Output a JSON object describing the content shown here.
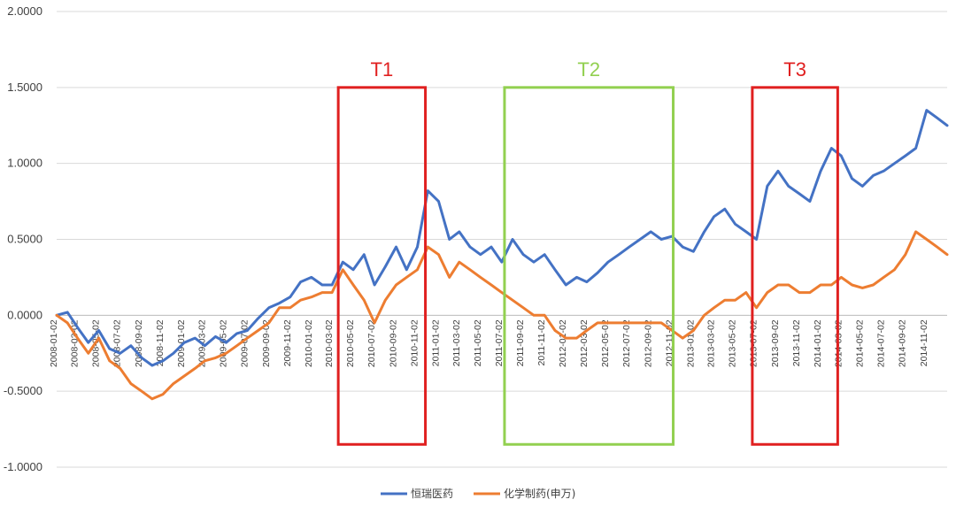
{
  "chart_data": {
    "type": "line",
    "title": "",
    "xlabel": "",
    "ylabel": "",
    "ylim": [
      -1.0,
      2.0
    ],
    "y_ticks": [
      "2.0000",
      "1.5000",
      "1.0000",
      "0.5000",
      "0.0000",
      "-0.5000",
      "-1.0000"
    ],
    "grid": true,
    "x_start": "2008-01-02",
    "x_end": "2014-12-31",
    "x_tick_labels": [
      "2008-01-02",
      "2008-03-02",
      "2008-05-02",
      "2008-07-02",
      "2008-09-02",
      "2008-11-02",
      "2009-01-02",
      "2009-03-02",
      "2009-05-02",
      "2009-07-02",
      "2009-09-02",
      "2009-11-02",
      "2010-01-02",
      "2010-03-02",
      "2010-05-02",
      "2010-07-02",
      "2010-09-02",
      "2010-11-02",
      "2011-01-02",
      "2011-03-02",
      "2011-05-02",
      "2011-07-02",
      "2011-09-02",
      "2011-11-02",
      "2012-01-02",
      "2012-03-02",
      "2012-05-02",
      "2012-07-02",
      "2012-09-02",
      "2012-11-02",
      "2013-01-02",
      "2013-03-02",
      "2013-05-02",
      "2013-07-02",
      "2013-09-02",
      "2013-11-02",
      "2014-01-02",
      "2014-03-02",
      "2014-05-02",
      "2014-07-02",
      "2014-09-02",
      "2014-11-02"
    ],
    "series": [
      {
        "name": "恒瑞医药",
        "color": "#4472C4",
        "x": [
          "2008-01-02",
          "2008-02-02",
          "2008-03-02",
          "2008-04-02",
          "2008-05-02",
          "2008-06-02",
          "2008-07-02",
          "2008-08-02",
          "2008-09-02",
          "2008-10-02",
          "2008-11-02",
          "2008-12-02",
          "2009-01-02",
          "2009-02-02",
          "2009-03-02",
          "2009-04-02",
          "2009-05-02",
          "2009-06-02",
          "2009-07-02",
          "2009-08-02",
          "2009-09-02",
          "2009-10-02",
          "2009-11-02",
          "2009-12-02",
          "2010-01-02",
          "2010-02-02",
          "2010-03-02",
          "2010-04-02",
          "2010-05-02",
          "2010-06-02",
          "2010-07-02",
          "2010-08-02",
          "2010-09-02",
          "2010-10-02",
          "2010-11-02",
          "2010-12-02",
          "2011-01-02",
          "2011-02-02",
          "2011-03-02",
          "2011-04-02",
          "2011-05-02",
          "2011-06-02",
          "2011-07-02",
          "2011-08-02",
          "2011-09-02",
          "2011-10-02",
          "2011-11-02",
          "2011-12-02",
          "2012-01-02",
          "2012-02-02",
          "2012-03-02",
          "2012-04-02",
          "2012-05-02",
          "2012-06-02",
          "2012-07-02",
          "2012-08-02",
          "2012-09-02",
          "2012-10-02",
          "2012-11-02",
          "2012-12-02",
          "2013-01-02",
          "2013-02-02",
          "2013-03-02",
          "2013-04-02",
          "2013-05-02",
          "2013-06-02",
          "2013-07-02",
          "2013-08-02",
          "2013-09-02",
          "2013-10-02",
          "2013-11-02",
          "2013-12-02",
          "2014-01-02",
          "2014-02-02",
          "2014-03-02",
          "2014-04-02",
          "2014-05-02",
          "2014-06-02",
          "2014-07-02",
          "2014-08-02",
          "2014-09-02",
          "2014-10-02",
          "2014-11-02",
          "2014-12-02",
          "2014-12-31"
        ],
        "values": [
          0.0,
          0.02,
          -0.08,
          -0.18,
          -0.1,
          -0.22,
          -0.25,
          -0.2,
          -0.28,
          -0.33,
          -0.3,
          -0.25,
          -0.18,
          -0.15,
          -0.2,
          -0.14,
          -0.18,
          -0.12,
          -0.1,
          -0.02,
          0.05,
          0.08,
          0.12,
          0.22,
          0.25,
          0.2,
          0.2,
          0.35,
          0.3,
          0.4,
          0.2,
          0.32,
          0.45,
          0.3,
          0.45,
          0.82,
          0.75,
          0.5,
          0.55,
          0.45,
          0.4,
          0.45,
          0.35,
          0.5,
          0.4,
          0.35,
          0.4,
          0.3,
          0.2,
          0.25,
          0.22,
          0.28,
          0.35,
          0.4,
          0.45,
          0.5,
          0.55,
          0.5,
          0.52,
          0.45,
          0.42,
          0.55,
          0.65,
          0.7,
          0.6,
          0.55,
          0.5,
          0.85,
          0.95,
          0.85,
          0.8,
          0.75,
          0.95,
          1.1,
          1.05,
          0.9,
          0.85,
          0.92,
          0.95,
          1.0,
          1.05,
          1.1,
          1.35,
          1.3,
          1.25
        ]
      },
      {
        "name": "化学制药(申万)",
        "color": "#ED7D31",
        "x": [
          "2008-01-02",
          "2008-02-02",
          "2008-03-02",
          "2008-04-02",
          "2008-05-02",
          "2008-06-02",
          "2008-07-02",
          "2008-08-02",
          "2008-09-02",
          "2008-10-02",
          "2008-11-02",
          "2008-12-02",
          "2009-01-02",
          "2009-02-02",
          "2009-03-02",
          "2009-04-02",
          "2009-05-02",
          "2009-06-02",
          "2009-07-02",
          "2009-08-02",
          "2009-09-02",
          "2009-10-02",
          "2009-11-02",
          "2009-12-02",
          "2010-01-02",
          "2010-02-02",
          "2010-03-02",
          "2010-04-02",
          "2010-05-02",
          "2010-06-02",
          "2010-07-02",
          "2010-08-02",
          "2010-09-02",
          "2010-10-02",
          "2010-11-02",
          "2010-12-02",
          "2011-01-02",
          "2011-02-02",
          "2011-03-02",
          "2011-04-02",
          "2011-05-02",
          "2011-06-02",
          "2011-07-02",
          "2011-08-02",
          "2011-09-02",
          "2011-10-02",
          "2011-11-02",
          "2011-12-02",
          "2012-01-02",
          "2012-02-02",
          "2012-03-02",
          "2012-04-02",
          "2012-05-02",
          "2012-06-02",
          "2012-07-02",
          "2012-08-02",
          "2012-09-02",
          "2012-10-02",
          "2012-11-02",
          "2012-12-02",
          "2013-01-02",
          "2013-02-02",
          "2013-03-02",
          "2013-04-02",
          "2013-05-02",
          "2013-06-02",
          "2013-07-02",
          "2013-08-02",
          "2013-09-02",
          "2013-10-02",
          "2013-11-02",
          "2013-12-02",
          "2014-01-02",
          "2014-02-02",
          "2014-03-02",
          "2014-04-02",
          "2014-05-02",
          "2014-06-02",
          "2014-07-02",
          "2014-08-02",
          "2014-09-02",
          "2014-10-02",
          "2014-11-02",
          "2014-12-02",
          "2014-12-31"
        ],
        "values": [
          0.0,
          -0.05,
          -0.15,
          -0.25,
          -0.15,
          -0.3,
          -0.35,
          -0.45,
          -0.5,
          -0.55,
          -0.52,
          -0.45,
          -0.4,
          -0.35,
          -0.3,
          -0.28,
          -0.25,
          -0.2,
          -0.15,
          -0.1,
          -0.05,
          0.05,
          0.05,
          0.1,
          0.12,
          0.15,
          0.15,
          0.3,
          0.2,
          0.1,
          -0.05,
          0.1,
          0.2,
          0.25,
          0.3,
          0.45,
          0.4,
          0.25,
          0.35,
          0.3,
          0.25,
          0.2,
          0.15,
          0.1,
          0.05,
          0.0,
          0.0,
          -0.1,
          -0.15,
          -0.15,
          -0.1,
          -0.05,
          -0.05,
          -0.05,
          -0.05,
          -0.05,
          -0.05,
          -0.05,
          -0.1,
          -0.15,
          -0.1,
          0.0,
          0.05,
          0.1,
          0.1,
          0.15,
          0.05,
          0.15,
          0.2,
          0.2,
          0.15,
          0.15,
          0.2,
          0.2,
          0.25,
          0.2,
          0.18,
          0.2,
          0.25,
          0.3,
          0.4,
          0.55,
          0.5,
          0.45,
          0.4
        ]
      }
    ],
    "annotations": [
      {
        "label": "T1",
        "color": "#E02020",
        "x_start": "2010-03-20",
        "x_end": "2010-11-25",
        "y_top": 1.5,
        "y_bottom": -0.85
      },
      {
        "label": "T2",
        "color": "#92D050",
        "x_start": "2011-07-10",
        "x_end": "2012-11-05",
        "y_top": 1.5,
        "y_bottom": -0.85
      },
      {
        "label": "T3",
        "color": "#E02020",
        "x_start": "2013-06-20",
        "x_end": "2014-02-20",
        "y_top": 1.5,
        "y_bottom": -0.85
      }
    ],
    "legend": {
      "placement": "bottom"
    }
  }
}
